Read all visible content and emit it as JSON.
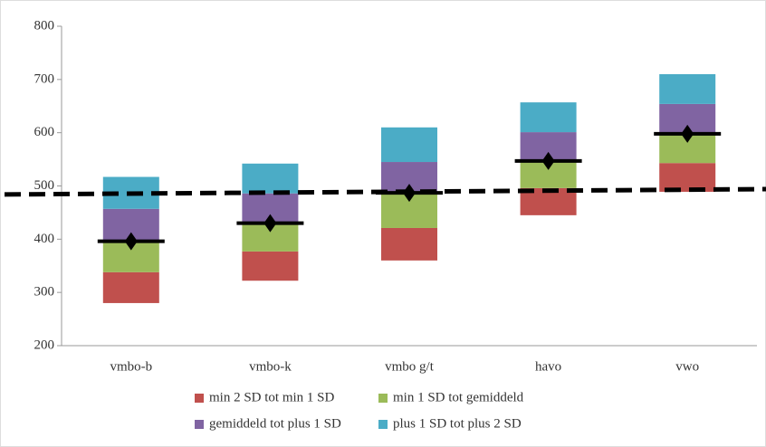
{
  "chart_data": {
    "type": "floating-stacked-bar",
    "categories": [
      "vmbo-b",
      "vmbo-k",
      "vmbo g/t",
      "havo",
      "vwo"
    ],
    "series": [
      {
        "name": "min 2 SD tot min 1 SD",
        "color": "#c0504d",
        "values": [
          [
            280,
            338
          ],
          [
            322,
            377
          ],
          [
            360,
            421
          ],
          [
            445,
            496
          ],
          [
            489,
            543
          ]
        ]
      },
      {
        "name": "min 1 SD tot gemiddeld",
        "color": "#9bbb59",
        "values": [
          [
            338,
            396
          ],
          [
            377,
            430
          ],
          [
            421,
            487
          ],
          [
            496,
            547
          ],
          [
            543,
            598
          ]
        ]
      },
      {
        "name": "gemiddeld tot plus 1 SD",
        "color": "#8064a2",
        "values": [
          [
            396,
            457
          ],
          [
            430,
            486
          ],
          [
            487,
            545
          ],
          [
            547,
            601
          ],
          [
            598,
            654
          ]
        ]
      },
      {
        "name": "plus 1 SD tot plus 2 SD",
        "color": "#4bacc6",
        "values": [
          [
            457,
            517
          ],
          [
            486,
            542
          ],
          [
            545,
            610
          ],
          [
            601,
            657
          ],
          [
            654,
            710
          ]
        ]
      }
    ],
    "means": [
      396,
      430,
      487,
      547,
      598
    ],
    "reference_line": [
      484,
      494
    ],
    "ylim": [
      200,
      800
    ],
    "yticks": [
      200,
      300,
      400,
      500,
      600,
      700,
      800
    ],
    "grid": false
  }
}
